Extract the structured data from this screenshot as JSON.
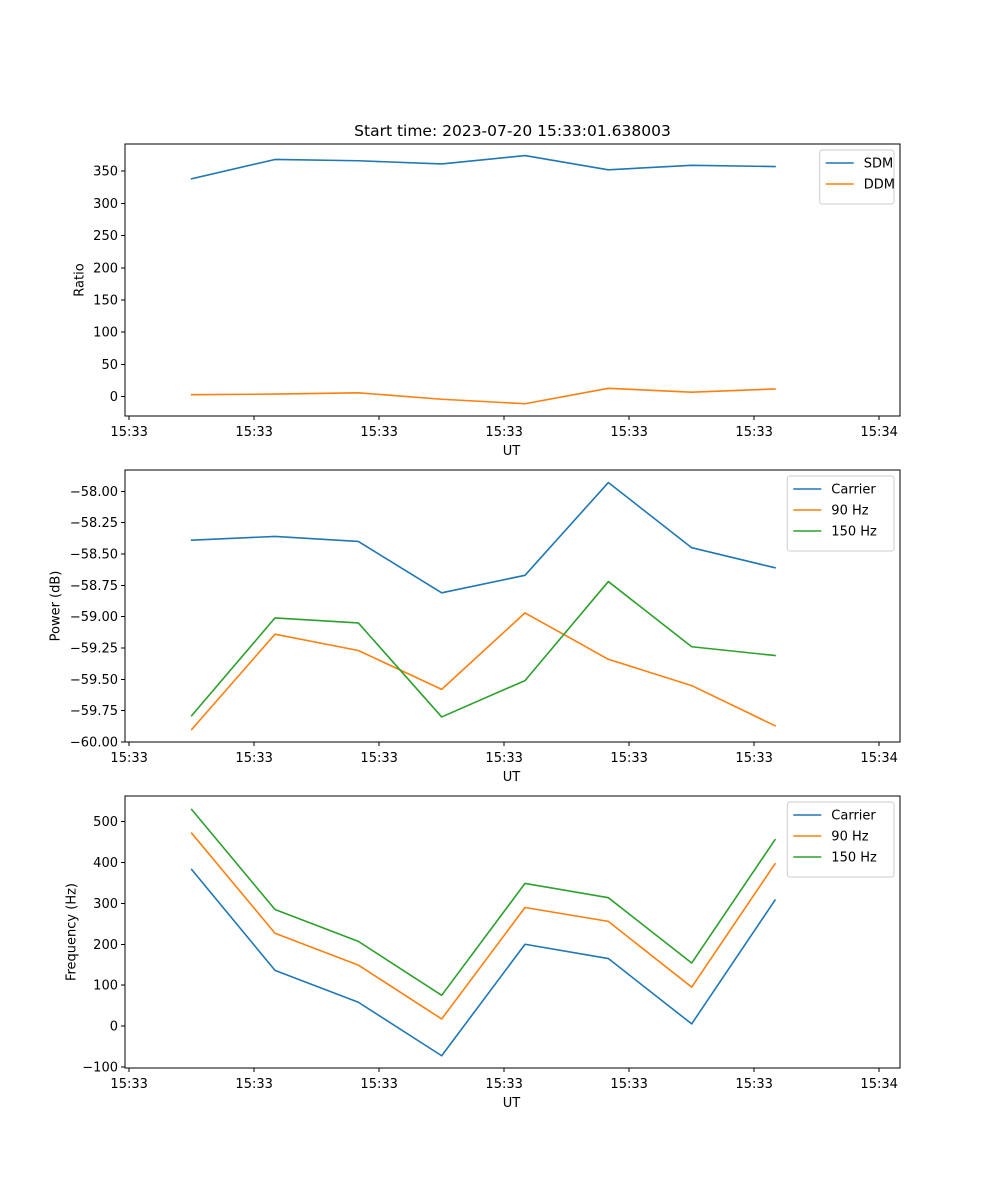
{
  "figure": {
    "title": "Start time: 2023-07-20 15:33:01.638003"
  },
  "chart_data": [
    {
      "type": "line",
      "title": "Start time: 2023-07-20 15:33:01.638003",
      "xlabel": "UT",
      "ylabel": "Ratio",
      "xlim": [
        -0.8,
        8.5
      ],
      "ylim": [
        -30,
        392
      ],
      "x": [
        0,
        1,
        2,
        3,
        4,
        5,
        6,
        7
      ],
      "xticks": [
        -0.75,
        0.75,
        2.25,
        3.75,
        5.25,
        6.75,
        8.25
      ],
      "xtick_labels": [
        "15:33",
        "15:33",
        "15:33",
        "15:33",
        "15:33",
        "15:33",
        "15:34"
      ],
      "yticks": [
        0,
        50,
        100,
        150,
        200,
        250,
        300,
        350
      ],
      "ytick_labels": [
        "0",
        "50",
        "100",
        "150",
        "200",
        "250",
        "300",
        "350"
      ],
      "legend_position": "top-right",
      "series": [
        {
          "name": "SDM",
          "color": "#1f77b4",
          "values": [
            338,
            368,
            366,
            361,
            374,
            352,
            359,
            357
          ]
        },
        {
          "name": "DDM",
          "color": "#ff7f0e",
          "values": [
            3,
            4,
            6,
            -4,
            -11,
            13,
            7,
            12
          ]
        }
      ]
    },
    {
      "type": "line",
      "title": "",
      "xlabel": "UT",
      "ylabel": "Power (dB)",
      "xlim": [
        -0.8,
        8.5
      ],
      "ylim": [
        -60.0,
        -57.83
      ],
      "x": [
        0,
        1,
        2,
        3,
        4,
        5,
        6,
        7
      ],
      "xticks": [
        -0.75,
        0.75,
        2.25,
        3.75,
        5.25,
        6.75,
        8.25
      ],
      "xtick_labels": [
        "15:33",
        "15:33",
        "15:33",
        "15:33",
        "15:33",
        "15:33",
        "15:34"
      ],
      "yticks": [
        -60.0,
        -59.75,
        -59.5,
        -59.25,
        -59.0,
        -58.75,
        -58.5,
        -58.25,
        -58.0
      ],
      "ytick_labels": [
        "−60.00",
        "−59.75",
        "−59.50",
        "−59.25",
        "−59.00",
        "−58.75",
        "−58.50",
        "−58.25",
        "−58.00"
      ],
      "legend_position": "top-right",
      "series": [
        {
          "name": "Carrier",
          "color": "#1f77b4",
          "values": [
            -58.39,
            -58.36,
            -58.4,
            -58.81,
            -58.67,
            -57.93,
            -58.45,
            -58.61
          ]
        },
        {
          "name": "90 Hz",
          "color": "#ff7f0e",
          "values": [
            -59.9,
            -59.14,
            -59.27,
            -59.58,
            -58.97,
            -59.34,
            -59.55,
            -59.87
          ]
        },
        {
          "name": "150 Hz",
          "color": "#2ca02c",
          "values": [
            -59.79,
            -59.01,
            -59.05,
            -59.8,
            -59.51,
            -58.72,
            -59.24,
            -59.31
          ]
        }
      ]
    },
    {
      "type": "line",
      "title": "",
      "xlabel": "UT",
      "ylabel": "Frequency (Hz)",
      "xlim": [
        -0.8,
        8.5
      ],
      "ylim": [
        -103,
        563
      ],
      "x": [
        0,
        1,
        2,
        3,
        4,
        5,
        6,
        7
      ],
      "xticks": [
        -0.75,
        0.75,
        2.25,
        3.75,
        5.25,
        6.75,
        8.25
      ],
      "xtick_labels": [
        "15:33",
        "15:33",
        "15:33",
        "15:33",
        "15:33",
        "15:33",
        "15:34"
      ],
      "yticks": [
        -100,
        0,
        100,
        200,
        300,
        400,
        500
      ],
      "ytick_labels": [
        "−100",
        "0",
        "100",
        "200",
        "300",
        "400",
        "500"
      ],
      "legend_position": "top-right",
      "series": [
        {
          "name": "Carrier",
          "color": "#1f77b4",
          "values": [
            383,
            136,
            58,
            -73,
            200,
            165,
            5,
            308
          ]
        },
        {
          "name": "90 Hz",
          "color": "#ff7f0e",
          "values": [
            472,
            227,
            149,
            17,
            290,
            256,
            95,
            397
          ]
        },
        {
          "name": "150 Hz",
          "color": "#2ca02c",
          "values": [
            530,
            285,
            207,
            75,
            349,
            314,
            154,
            456
          ]
        }
      ]
    }
  ]
}
